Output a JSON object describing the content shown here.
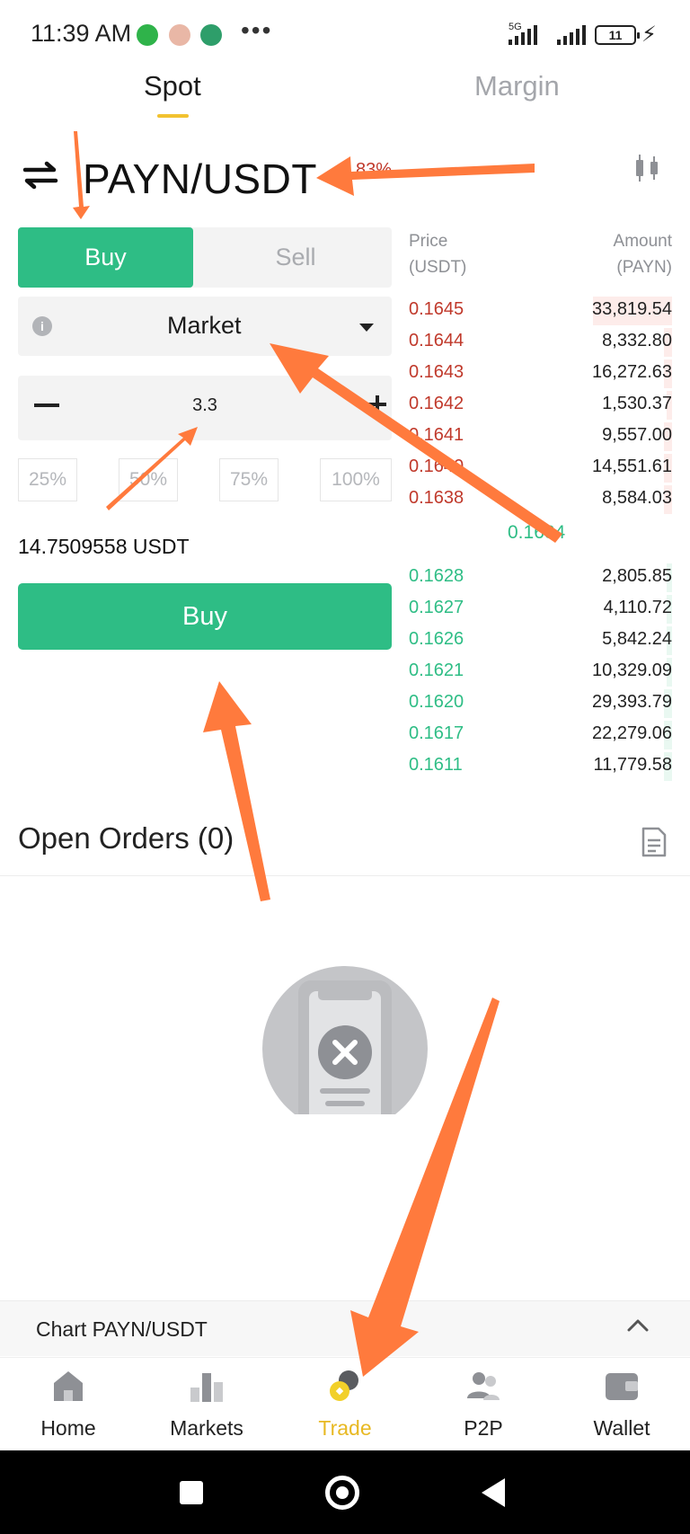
{
  "status_bar": {
    "time": "11:39 AM",
    "network": "5G",
    "battery": "11"
  },
  "tabs": [
    {
      "label": "Spot",
      "active": true
    },
    {
      "label": "Margin",
      "active": false
    }
  ],
  "pair": {
    "title": "PAYN/USDT",
    "change": "83%"
  },
  "trade_form": {
    "buy_tab": "Buy",
    "sell_tab": "Sell",
    "order_type": "Market",
    "amount": "3.3",
    "percent_options": [
      "25%",
      "50%",
      "75%",
      "100%"
    ],
    "total": "14.7509558 USDT",
    "submit_label": "Buy"
  },
  "order_book": {
    "price_header": [
      "Price",
      "(USDT)"
    ],
    "amount_header": [
      "Amount",
      "(PAYN)"
    ],
    "asks": [
      {
        "price": "0.1645",
        "amount": "33,819.54",
        "depth": 0.3
      },
      {
        "price": "0.1644",
        "amount": "8,332.80",
        "depth": 0.03
      },
      {
        "price": "0.1643",
        "amount": "16,272.63",
        "depth": 0.03
      },
      {
        "price": "0.1642",
        "amount": "1,530.37",
        "depth": 0.02
      },
      {
        "price": "0.1641",
        "amount": "9,557.00",
        "depth": 0.03
      },
      {
        "price": "0.1640",
        "amount": "14,551.61",
        "depth": 0.03
      },
      {
        "price": "0.1638",
        "amount": "8,584.03",
        "depth": 0.03
      }
    ],
    "last_price": "0.1634",
    "bids": [
      {
        "price": "0.1628",
        "amount": "2,805.85",
        "depth": 0.02
      },
      {
        "price": "0.1627",
        "amount": "4,110.72",
        "depth": 0.02
      },
      {
        "price": "0.1626",
        "amount": "5,842.24",
        "depth": 0.02
      },
      {
        "price": "0.1621",
        "amount": "10,329.09",
        "depth": 0.02
      },
      {
        "price": "0.1620",
        "amount": "29,393.79",
        "depth": 0.03
      },
      {
        "price": "0.1617",
        "amount": "22,279.06",
        "depth": 0.03
      },
      {
        "price": "0.1611",
        "amount": "11,779.58",
        "depth": 0.03
      }
    ]
  },
  "open_orders": {
    "title": "Open Orders (0)"
  },
  "chart_bar": {
    "label": "Chart PAYN/USDT"
  },
  "bottom_nav": [
    {
      "label": "Home",
      "icon": "home-icon",
      "active": false
    },
    {
      "label": "Markets",
      "icon": "markets-icon",
      "active": false
    },
    {
      "label": "Trade",
      "icon": "trade-icon",
      "active": true
    },
    {
      "label": "P2P",
      "icon": "p2p-icon",
      "active": false
    },
    {
      "label": "Wallet",
      "icon": "wallet-icon",
      "active": false
    }
  ],
  "colors": {
    "buy": "#2ebd85",
    "sell": "#c0392b",
    "accent": "#e8b923",
    "annotation": "#ff7a3d"
  }
}
